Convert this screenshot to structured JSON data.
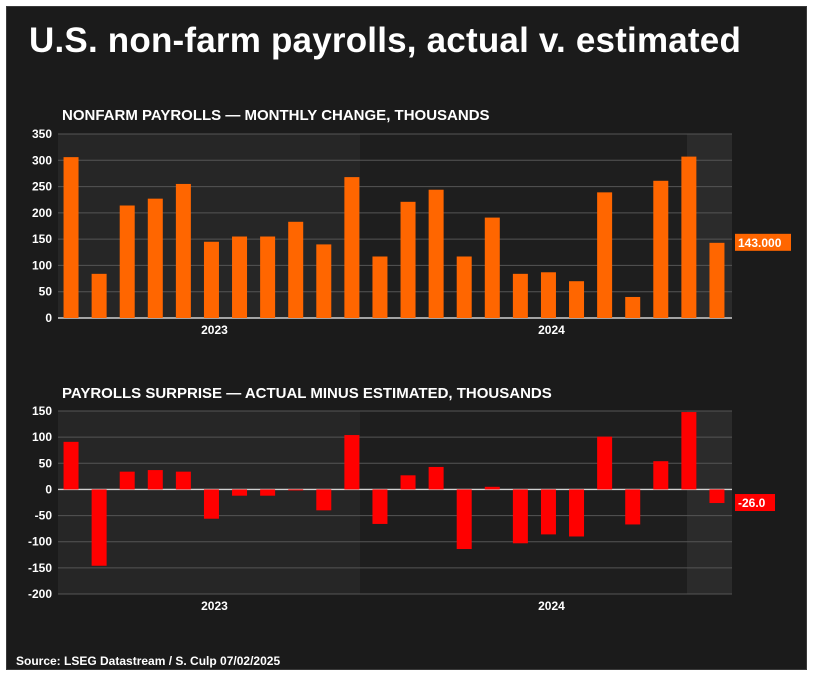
{
  "title": "U.S. non-farm payrolls, actual v. estimated",
  "source": "Source: LSEG Datastream / S. Culp 07/02/2025",
  "colors": {
    "payrolls_bar": "#ff6600",
    "surprise_bar": "#ff0000",
    "background": "#1b1b1b",
    "label_payrolls": "#ff6600",
    "label_surprise": "#ff0000"
  },
  "chart_data": [
    {
      "type": "bar",
      "title": "NONFARM PAYROLLS — MONTHLY CHANGE, THOUSANDS",
      "ylim": [
        0,
        350
      ],
      "yticks": [
        "350",
        "300",
        "250",
        "200",
        "150",
        "100",
        "50",
        "0"
      ],
      "year_labels": [
        "2023",
        "2024"
      ],
      "values": [
        306,
        84,
        214,
        227,
        255,
        145,
        155,
        155,
        183,
        140,
        268,
        117,
        221,
        244,
        117,
        191,
        84,
        87,
        70,
        239,
        40,
        261,
        307,
        143
      ],
      "last_value_label": "143.000"
    },
    {
      "type": "bar",
      "title": "PAYROLLS SURPRISE — ACTUAL MINUS ESTIMATED, THOUSANDS",
      "ylim": [
        -200,
        150
      ],
      "yticks": [
        "150",
        "100",
        "50",
        "0",
        "-50",
        "-100",
        "-150",
        "-200"
      ],
      "year_labels": [
        "2023",
        "2024"
      ],
      "values": [
        91,
        -146,
        34,
        37,
        34,
        -56,
        -12,
        -12,
        0,
        -40,
        104,
        -66,
        27,
        43,
        -114,
        5,
        -103,
        -86,
        -90,
        101,
        -67,
        54,
        148,
        -26
      ],
      "last_value_label": "-26.0"
    }
  ]
}
